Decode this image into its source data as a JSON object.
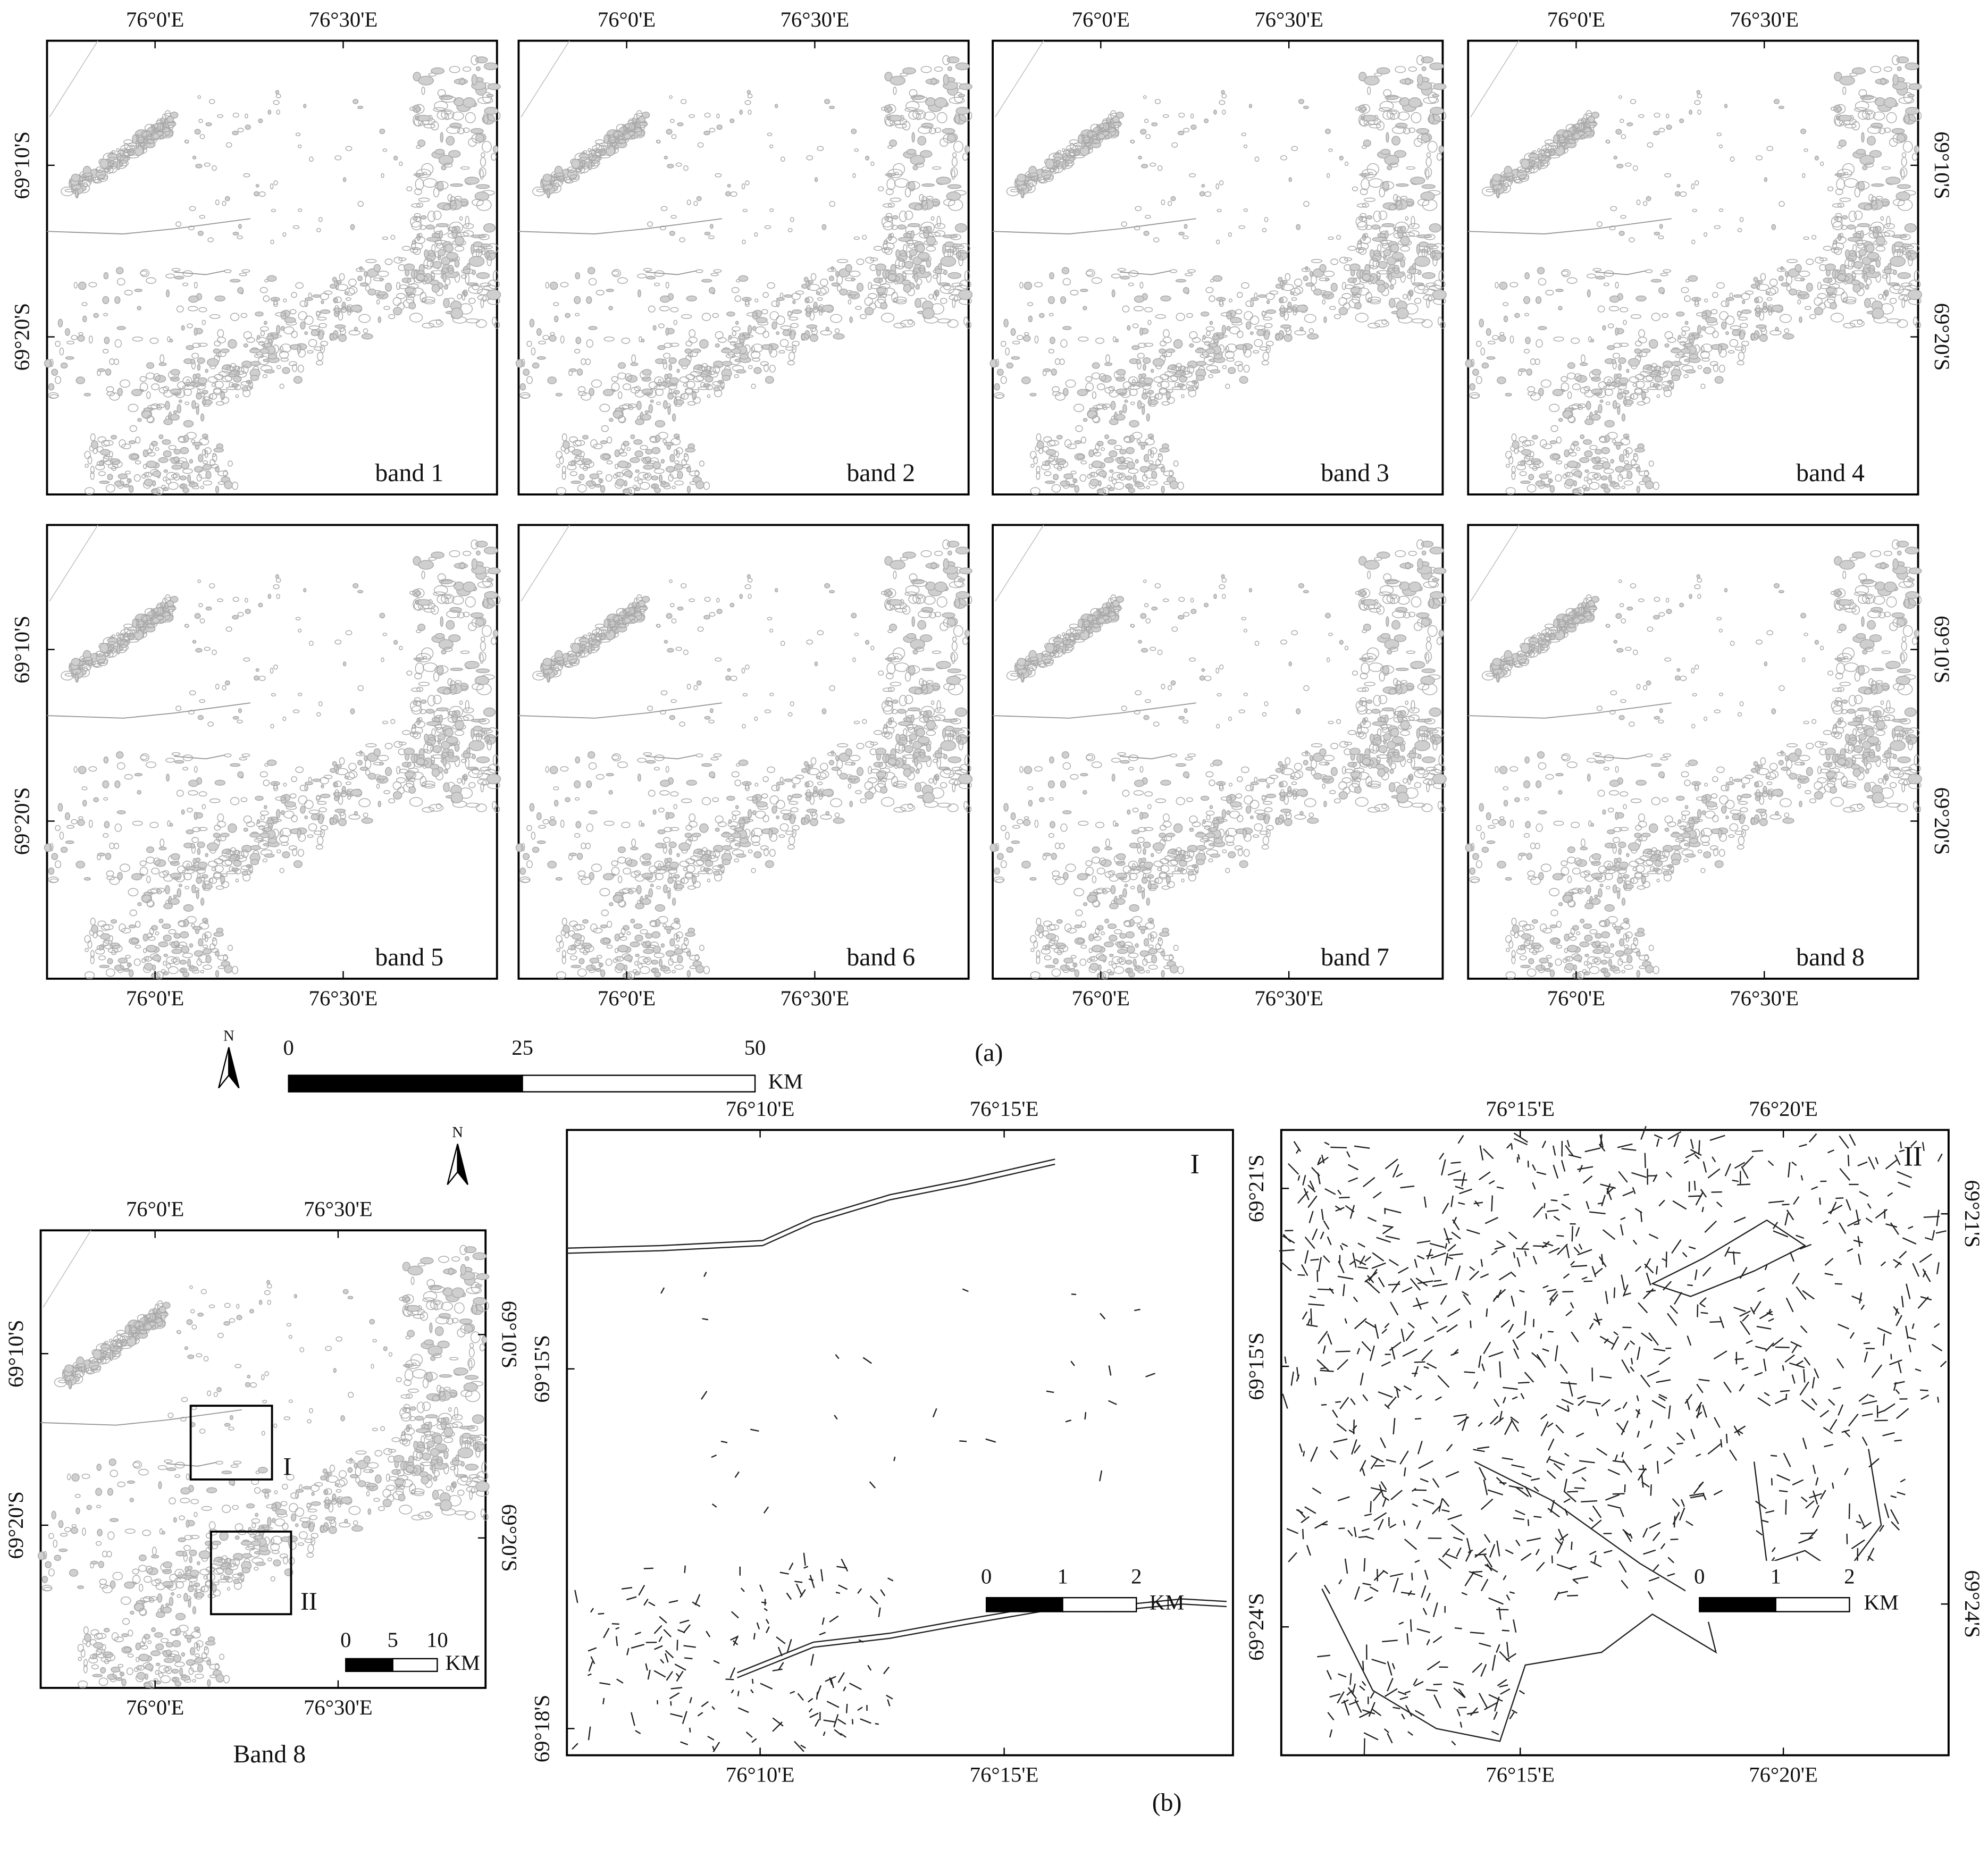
{
  "figure_a": {
    "panels": [
      {
        "label": "band 1",
        "top_labels": [
          "76°0'E",
          "76°30'E"
        ],
        "left_labels": [
          "69°10'S",
          "69°20'S"
        ]
      },
      {
        "label": "band 2",
        "top_labels": [
          "76°0'E",
          "76°30'E"
        ]
      },
      {
        "label": "band 3",
        "top_labels": [
          "76°0'E",
          "76°30'E"
        ]
      },
      {
        "label": "band 4",
        "top_labels": [
          "76°0'E",
          "76°30'E"
        ],
        "right_labels": [
          "69°10'S",
          "69°20'S"
        ]
      },
      {
        "label": "band 5",
        "left_labels": [
          "69°10'S",
          "69°20'S"
        ],
        "bottom_labels": [
          "76°0'E",
          "76°30'E"
        ]
      },
      {
        "label": "band 6",
        "bottom_labels": [
          "76°0'E",
          "76°30'E"
        ]
      },
      {
        "label": "band 7",
        "bottom_labels": [
          "76°0'E",
          "76°30'E"
        ]
      },
      {
        "label": "band 8",
        "right_labels": [
          "69°10'S",
          "69°20'S"
        ],
        "bottom_labels": [
          "76°0'E",
          "76°30'E"
        ]
      }
    ],
    "north": "N",
    "scale_bar": {
      "ticks": [
        0,
        25,
        50
      ],
      "unit": "KM"
    },
    "caption": "(a)"
  },
  "figure_b": {
    "overview": {
      "north": "N",
      "top_labels": [
        "76°0'E",
        "76°30'E"
      ],
      "bottom_labels": [
        "76°0'E",
        "76°30'E"
      ],
      "left_labels": [
        "69°10'S",
        "69°20'S"
      ],
      "right_labels": [
        "69°10'S",
        "69°20'S"
      ],
      "boxes": [
        "I",
        "II"
      ],
      "scale_bar": {
        "ticks": [
          0,
          5,
          10
        ],
        "unit": "KM"
      },
      "caption": "Band 8"
    },
    "detail_1": {
      "label": "I",
      "top_labels": [
        "76°10'E",
        "76°15'E"
      ],
      "bottom_labels": [
        "76°10'E",
        "76°15'E"
      ],
      "left_labels": [
        "69°15'S",
        "69°18'S"
      ],
      "scale_bar": {
        "ticks": [
          0,
          1,
          2
        ],
        "unit": "KM"
      }
    },
    "detail_2": {
      "label": "II",
      "top_labels": [
        "76°15'E",
        "76°20'E"
      ],
      "bottom_labels": [
        "76°15'E",
        "76°20'E"
      ],
      "left_labels": [
        "69°21'S",
        "69°15'S",
        "69°24'S"
      ],
      "right_labels": [
        "69°21'S",
        "69°24'S"
      ],
      "scale_bar": {
        "ticks": [
          0,
          1,
          2
        ],
        "unit": "KM"
      }
    },
    "caption": "(b)"
  }
}
